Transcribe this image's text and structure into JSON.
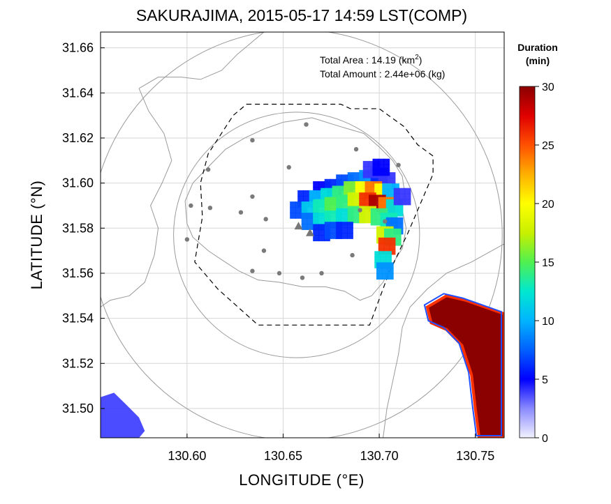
{
  "chart_data": {
    "type": "heatmap",
    "title": "SAKURAJIMA, 2015-05-17 14:59 LST(COMP)",
    "xlabel": "LONGITUDE (°E)",
    "ylabel": "LATITUDE (°N)",
    "xlim": [
      130.555,
      130.765
    ],
    "ylim": [
      31.487,
      31.667
    ],
    "xticks": [
      "130.60",
      "130.65",
      "130.70",
      "130.75"
    ],
    "xtick_values": [
      130.6,
      130.65,
      130.7,
      130.75
    ],
    "yticks": [
      "31.50",
      "31.52",
      "31.54",
      "31.56",
      "31.58",
      "31.60",
      "31.62",
      "31.64",
      "31.66"
    ],
    "ytick_values": [
      31.5,
      31.52,
      31.54,
      31.56,
      31.58,
      31.6,
      31.62,
      31.64,
      31.66
    ],
    "grid": true,
    "annotations": {
      "area_label": "Total Area   : 14.19 (km",
      "area_sup": "2",
      "area_close": ")",
      "amount_label": "Total Amount : 2.44e+06 (kg)"
    },
    "colorbar": {
      "title_line1": "Duration",
      "title_line2": "(min)",
      "min": 0,
      "max": 30,
      "ticks": [
        "0",
        "5",
        "10",
        "15",
        "20",
        "25",
        "30"
      ],
      "tick_values": [
        0,
        5,
        10,
        15,
        20,
        25,
        30
      ],
      "colormap": [
        "#f2f2ff",
        "#8a8aff",
        "#0000ff",
        "#0060ff",
        "#00b4ff",
        "#00e8d0",
        "#50f050",
        "#c8f000",
        "#ffff00",
        "#ffb000",
        "#ff5000",
        "#e00000",
        "#8b0000"
      ]
    },
    "vent_markers": [
      {
        "lon": 130.658,
        "lat": 31.581
      },
      {
        "lon": 130.664,
        "lat": 31.578
      }
    ],
    "stations": [
      {
        "lon": 130.662,
        "lat": 31.626
      },
      {
        "lon": 130.634,
        "lat": 31.619
      },
      {
        "lon": 130.688,
        "lat": 31.615
      },
      {
        "lon": 130.71,
        "lat": 31.608
      },
      {
        "lon": 130.611,
        "lat": 31.606
      },
      {
        "lon": 130.653,
        "lat": 31.607
      },
      {
        "lon": 130.602,
        "lat": 31.59
      },
      {
        "lon": 130.612,
        "lat": 31.589
      },
      {
        "lon": 130.628,
        "lat": 31.587
      },
      {
        "lon": 130.634,
        "lat": 31.594
      },
      {
        "lon": 130.641,
        "lat": 31.584
      },
      {
        "lon": 130.6,
        "lat": 31.575
      },
      {
        "lon": 130.64,
        "lat": 31.57
      },
      {
        "lon": 130.634,
        "lat": 31.561
      },
      {
        "lon": 130.648,
        "lat": 31.56
      },
      {
        "lon": 130.66,
        "lat": 31.558
      },
      {
        "lon": 130.67,
        "lat": 31.56
      },
      {
        "lon": 130.686,
        "lat": 31.568
      },
      {
        "lon": 130.69,
        "lat": 31.588
      },
      {
        "lon": 130.703,
        "lat": 31.583
      }
    ],
    "circles": [
      {
        "center_lon": 130.657,
        "center_lat": 31.577,
        "radius_lon": 0.064
      },
      {
        "center_lon": 130.657,
        "center_lat": 31.577,
        "radius_lon": 0.107
      }
    ],
    "range_polygon": [
      [
        130.631,
        31.635
      ],
      [
        130.68,
        31.635
      ],
      [
        130.685,
        31.633
      ],
      [
        130.7,
        31.633
      ],
      [
        130.713,
        31.625
      ],
      [
        130.72,
        31.617
      ],
      [
        130.728,
        31.612
      ],
      [
        130.728,
        31.604
      ],
      [
        130.715,
        31.578
      ],
      [
        130.705,
        31.56
      ],
      [
        130.695,
        31.537
      ],
      [
        130.637,
        31.537
      ],
      [
        130.616,
        31.553
      ],
      [
        130.604,
        31.565
      ],
      [
        130.608,
        31.585
      ],
      [
        130.607,
        31.6
      ],
      [
        130.611,
        31.613
      ],
      [
        130.624,
        31.63
      ]
    ],
    "ash_cells": [
      {
        "lon": 130.67,
        "lat": 31.597,
        "value": 5
      },
      {
        "lon": 130.676,
        "lat": 31.598,
        "value": 6
      },
      {
        "lon": 130.682,
        "lat": 31.6,
        "value": 7
      },
      {
        "lon": 130.688,
        "lat": 31.601,
        "value": 8
      },
      {
        "lon": 130.694,
        "lat": 31.602,
        "value": 9
      },
      {
        "lon": 130.7,
        "lat": 31.603,
        "value": 6
      },
      {
        "lon": 130.704,
        "lat": 31.601,
        "value": 4
      },
      {
        "lon": 130.662,
        "lat": 31.593,
        "value": 6
      },
      {
        "lon": 130.668,
        "lat": 31.593,
        "value": 10
      },
      {
        "lon": 130.674,
        "lat": 31.594,
        "value": 12
      },
      {
        "lon": 130.68,
        "lat": 31.595,
        "value": 14
      },
      {
        "lon": 130.686,
        "lat": 31.597,
        "value": 16
      },
      {
        "lon": 130.692,
        "lat": 31.597,
        "value": 20
      },
      {
        "lon": 130.697,
        "lat": 31.597,
        "value": 24
      },
      {
        "lon": 130.702,
        "lat": 31.596,
        "value": 20
      },
      {
        "lon": 130.706,
        "lat": 31.596,
        "value": 10
      },
      {
        "lon": 130.658,
        "lat": 31.588,
        "value": 7
      },
      {
        "lon": 130.664,
        "lat": 31.588,
        "value": 11
      },
      {
        "lon": 130.67,
        "lat": 31.589,
        "value": 13
      },
      {
        "lon": 130.676,
        "lat": 31.59,
        "value": 15
      },
      {
        "lon": 130.682,
        "lat": 31.591,
        "value": 14
      },
      {
        "lon": 130.688,
        "lat": 31.592,
        "value": 18
      },
      {
        "lon": 130.694,
        "lat": 31.592,
        "value": 26
      },
      {
        "lon": 130.699,
        "lat": 31.591,
        "value": 29
      },
      {
        "lon": 130.704,
        "lat": 31.59,
        "value": 24
      },
      {
        "lon": 130.708,
        "lat": 31.589,
        "value": 12
      },
      {
        "lon": 130.664,
        "lat": 31.583,
        "value": 8
      },
      {
        "lon": 130.67,
        "lat": 31.583,
        "value": 12
      },
      {
        "lon": 130.676,
        "lat": 31.584,
        "value": 13
      },
      {
        "lon": 130.682,
        "lat": 31.585,
        "value": 12
      },
      {
        "lon": 130.688,
        "lat": 31.586,
        "value": 14
      },
      {
        "lon": 130.694,
        "lat": 31.586,
        "value": 18
      },
      {
        "lon": 130.7,
        "lat": 31.585,
        "value": 14
      },
      {
        "lon": 130.705,
        "lat": 31.583,
        "value": 13
      },
      {
        "lon": 130.708,
        "lat": 31.581,
        "value": 8
      },
      {
        "lon": 130.67,
        "lat": 31.578,
        "value": 6
      },
      {
        "lon": 130.676,
        "lat": 31.579,
        "value": 7
      },
      {
        "lon": 130.682,
        "lat": 31.579,
        "value": 6
      },
      {
        "lon": 130.703,
        "lat": 31.577,
        "value": 18
      },
      {
        "lon": 130.707,
        "lat": 31.576,
        "value": 14
      },
      {
        "lon": 130.704,
        "lat": 31.572,
        "value": 26
      },
      {
        "lon": 130.702,
        "lat": 31.566,
        "value": 12
      },
      {
        "lon": 130.703,
        "lat": 31.561,
        "value": 9
      },
      {
        "lon": 130.696,
        "lat": 31.606,
        "value": 4
      },
      {
        "lon": 130.701,
        "lat": 31.607,
        "value": 5
      },
      {
        "lon": 130.712,
        "lat": 31.594,
        "value": 4
      }
    ],
    "southeast_cells_value": 30,
    "southwest_cells_value": 4
  }
}
